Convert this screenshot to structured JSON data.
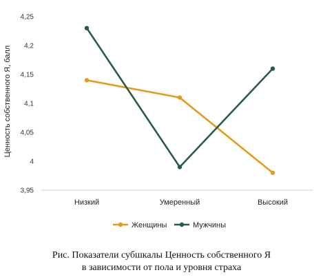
{
  "chart_data": {
    "type": "line",
    "categories": [
      "Низкий",
      "Умеренный",
      "Высокий"
    ],
    "series": [
      {
        "name": "Женщины",
        "values": [
          4.14,
          4.11,
          3.98
        ],
        "color": "#e69a1c"
      },
      {
        "name": "Мужчины",
        "values": [
          4.23,
          3.99,
          4.16
        ],
        "color": "#265c45"
      }
    ],
    "ylabel": "Ценность собственного Я, балл",
    "ylim": [
      3.95,
      4.25
    ],
    "yticks": [
      "3,95",
      "4",
      "4,05",
      "4,1",
      "4,15",
      "4,2",
      "4,25"
    ],
    "grid": false,
    "legend": "bottom"
  },
  "caption": {
    "line1": "Рис. Показатели субшкалы Ценность собственного Я",
    "line2": "в зависимости от пола и уровня страха"
  }
}
